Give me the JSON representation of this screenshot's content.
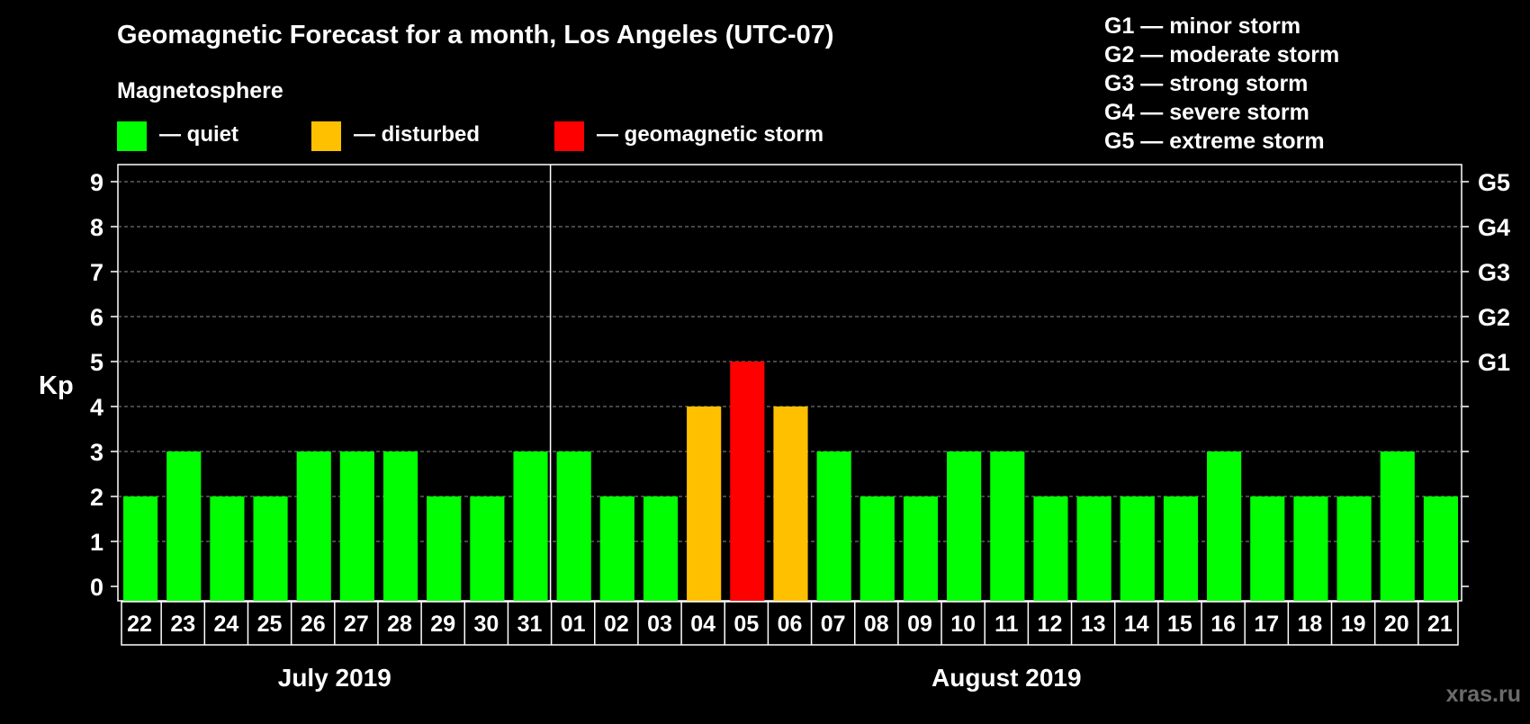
{
  "title": "Geomagnetic Forecast for a month, Los Angeles (UTC-07)",
  "subtitle": "Magnetosphere",
  "legend": [
    {
      "label": "— quiet",
      "color": "#00ff00"
    },
    {
      "label": "— disturbed",
      "color": "#ffc000"
    },
    {
      "label": "— geomagnetic storm",
      "color": "#ff0000"
    }
  ],
  "storm_scale": [
    "G1 — minor storm",
    "G2 — moderate storm",
    "G3 — strong storm",
    "G4 — severe storm",
    "G5 — extreme storm"
  ],
  "watermark": "xras.ru",
  "chart_data": {
    "type": "bar",
    "ylabel": "Kp",
    "ylim": [
      0,
      9
    ],
    "yticks": [
      0,
      1,
      2,
      3,
      4,
      5,
      6,
      7,
      8,
      9
    ],
    "right_ticks": [
      {
        "value": 5,
        "label": "G1"
      },
      {
        "value": 6,
        "label": "G2"
      },
      {
        "value": 7,
        "label": "G3"
      },
      {
        "value": 8,
        "label": "G4"
      },
      {
        "value": 9,
        "label": "G5"
      }
    ],
    "grid": true,
    "categories": [
      "22",
      "23",
      "24",
      "25",
      "26",
      "27",
      "28",
      "29",
      "30",
      "31",
      "01",
      "02",
      "03",
      "04",
      "05",
      "06",
      "07",
      "08",
      "09",
      "10",
      "11",
      "12",
      "13",
      "14",
      "15",
      "16",
      "17",
      "18",
      "19",
      "20",
      "21"
    ],
    "values": [
      2,
      3,
      2,
      2,
      3,
      3,
      3,
      2,
      2,
      3,
      3,
      2,
      2,
      4,
      5,
      4,
      3,
      2,
      2,
      3,
      3,
      2,
      2,
      2,
      2,
      3,
      2,
      2,
      2,
      3,
      2
    ],
    "months": [
      {
        "label": "July 2019",
        "start_index": 0,
        "end_index": 9
      },
      {
        "label": "August 2019",
        "start_index": 10,
        "end_index": 30
      }
    ],
    "color_rules": {
      "quiet_max": 3,
      "disturbed": 4,
      "storm_min": 5
    }
  }
}
